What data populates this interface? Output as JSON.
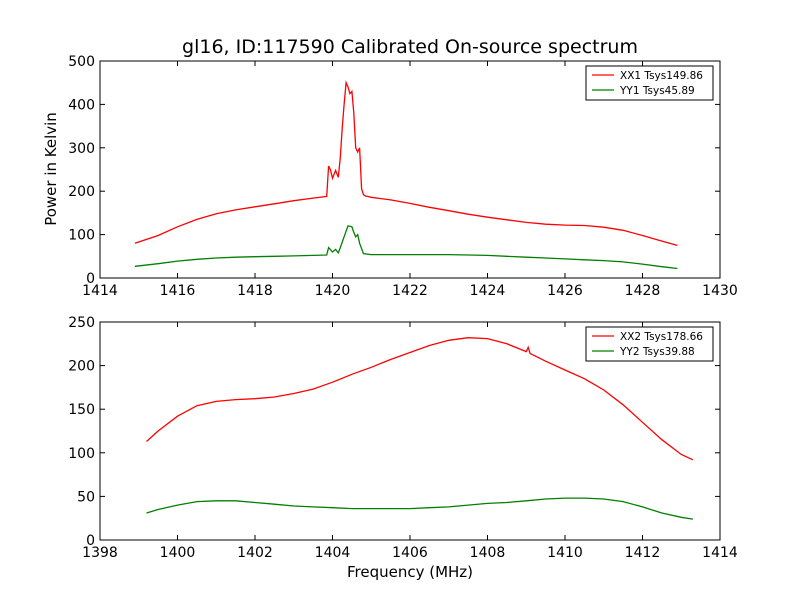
{
  "figure": {
    "title": "gl16, ID:117590 Calibrated On-source spectrum",
    "xlabel": "Frequency (MHz)",
    "ylabel": "Power in Kelvin"
  },
  "chart_data": [
    {
      "type": "line",
      "title": "gl16, ID:117590 Calibrated On-source spectrum",
      "xlabel": "",
      "ylabel": "Power in Kelvin",
      "xlim": [
        1414,
        1430
      ],
      "ylim": [
        0,
        500
      ],
      "xticks": [
        1414,
        1416,
        1418,
        1420,
        1422,
        1424,
        1426,
        1428,
        1430
      ],
      "yticks": [
        0,
        100,
        200,
        300,
        400,
        500
      ],
      "legend_position": "top-right",
      "series": [
        {
          "name": "XX1 Tsys149.86",
          "color": "#ff0000",
          "x": [
            1414.9,
            1415.5,
            1416.0,
            1416.5,
            1417.0,
            1417.5,
            1418.0,
            1418.5,
            1419.0,
            1419.5,
            1419.85,
            1419.9,
            1419.95,
            1420.0,
            1420.08,
            1420.15,
            1420.2,
            1420.25,
            1420.3,
            1420.35,
            1420.4,
            1420.45,
            1420.5,
            1420.55,
            1420.6,
            1420.65,
            1420.7,
            1420.75,
            1420.8,
            1420.85,
            1420.9,
            1421.0,
            1421.5,
            1422.0,
            1422.5,
            1423.0,
            1423.5,
            1424.0,
            1424.5,
            1425.0,
            1425.5,
            1426.0,
            1426.5,
            1427.0,
            1427.5,
            1428.0,
            1428.5,
            1428.9
          ],
          "y": [
            80,
            98,
            118,
            135,
            148,
            157,
            164,
            171,
            178,
            184,
            188,
            258,
            248,
            230,
            248,
            232,
            278,
            345,
            400,
            450,
            440,
            425,
            430,
            380,
            300,
            290,
            300,
            205,
            192,
            189,
            188,
            186,
            180,
            172,
            163,
            155,
            147,
            140,
            134,
            128,
            124,
            122,
            121,
            117,
            110,
            98,
            85,
            75
          ]
        },
        {
          "name": "YY1 Tsys45.89",
          "color": "#008000",
          "x": [
            1414.9,
            1415.5,
            1416.0,
            1416.5,
            1417.0,
            1417.5,
            1418.0,
            1418.5,
            1419.0,
            1419.5,
            1419.85,
            1419.9,
            1419.95,
            1420.0,
            1420.08,
            1420.15,
            1420.2,
            1420.3,
            1420.4,
            1420.5,
            1420.55,
            1420.6,
            1420.65,
            1420.7,
            1420.8,
            1421.0,
            1421.5,
            1422.0,
            1422.5,
            1423.0,
            1423.5,
            1424.0,
            1424.5,
            1425.0,
            1425.5,
            1426.0,
            1426.5,
            1427.0,
            1427.5,
            1428.0,
            1428.5,
            1428.9
          ],
          "y": [
            27,
            33,
            39,
            43,
            46,
            48,
            49,
            50,
            51,
            52,
            53,
            70,
            65,
            60,
            66,
            58,
            70,
            95,
            120,
            118,
            105,
            95,
            100,
            80,
            56,
            54,
            54,
            54,
            54,
            54,
            53,
            52,
            50,
            48,
            46,
            44,
            42,
            40,
            37,
            32,
            26,
            22
          ]
        }
      ]
    },
    {
      "type": "line",
      "title": "",
      "xlabel": "Frequency (MHz)",
      "ylabel": "",
      "xlim": [
        1398,
        1414
      ],
      "ylim": [
        0,
        250
      ],
      "xticks": [
        1398,
        1400,
        1402,
        1404,
        1406,
        1408,
        1410,
        1412,
        1414
      ],
      "yticks": [
        0,
        50,
        100,
        150,
        200,
        250
      ],
      "legend_position": "top-right",
      "series": [
        {
          "name": "XX2 Tsys178.66",
          "color": "#ff0000",
          "x": [
            1399.2,
            1399.5,
            1400.0,
            1400.5,
            1401.0,
            1401.5,
            1402.0,
            1402.5,
            1403.0,
            1403.5,
            1404.0,
            1404.5,
            1405.0,
            1405.5,
            1406.0,
            1406.5,
            1407.0,
            1407.5,
            1408.0,
            1408.5,
            1409.0,
            1409.05,
            1409.1,
            1409.5,
            1410.0,
            1410.5,
            1411.0,
            1411.5,
            1412.0,
            1412.5,
            1413.0,
            1413.3
          ],
          "y": [
            113,
            125,
            142,
            154,
            159,
            161,
            162,
            164,
            168,
            173,
            181,
            190,
            198,
            207,
            215,
            223,
            229,
            232,
            231,
            225,
            216,
            221,
            214,
            205,
            195,
            185,
            172,
            155,
            135,
            115,
            98,
            92
          ]
        },
        {
          "name": "YY2 Tsys39.88",
          "color": "#008000",
          "x": [
            1399.2,
            1399.5,
            1400.0,
            1400.5,
            1401.0,
            1401.5,
            1402.0,
            1402.5,
            1403.0,
            1403.5,
            1404.0,
            1404.5,
            1405.0,
            1405.5,
            1406.0,
            1406.5,
            1407.0,
            1407.5,
            1408.0,
            1408.5,
            1409.0,
            1409.5,
            1410.0,
            1410.5,
            1411.0,
            1411.5,
            1412.0,
            1412.5,
            1413.0,
            1413.3
          ],
          "y": [
            31,
            35,
            40,
            44,
            45,
            45,
            43,
            41,
            39,
            38,
            37,
            36,
            36,
            36,
            36,
            37,
            38,
            40,
            42,
            43,
            45,
            47,
            48,
            48,
            47,
            44,
            38,
            31,
            26,
            24
          ]
        }
      ]
    }
  ]
}
